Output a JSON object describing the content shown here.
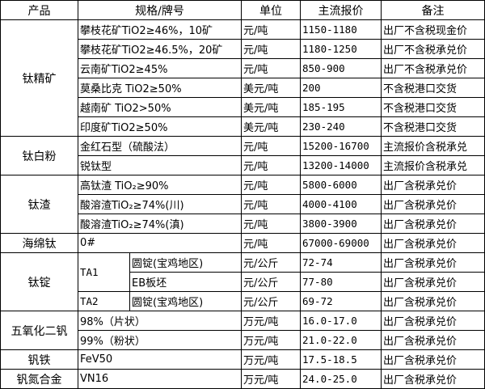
{
  "headers": [
    "产品",
    "规格/牌号",
    "单位",
    "主流报价",
    "备注"
  ],
  "groups": [
    {
      "product": "钛精矿",
      "rows": [
        {
          "spec": "攀枝花矿TiO2≥46%，10矿",
          "unit": "元/吨",
          "price": "1150-1180",
          "note": "出厂不含税现金价"
        },
        {
          "spec": "攀枝花矿TiO2≥46.5%，20矿",
          "unit": "元/吨",
          "price": "1180-1250",
          "note": "出厂不含税承兑价"
        },
        {
          "spec": "云南矿TiO2≥45%",
          "unit": "元/吨",
          "price": "850-900",
          "note": "出厂不含税承兑价"
        },
        {
          "spec": "莫桑比克 TiO2≥50%",
          "unit": "美元/吨",
          "price": "200",
          "note": "不含税港口交货"
        },
        {
          "spec": "越南矿 TiO2>50%",
          "unit": "美元/吨",
          "price": "185-195",
          "note": "不含税港口交货"
        },
        {
          "spec": "印度矿TiO2≥50%",
          "unit": "美元/吨",
          "price": "230-240",
          "note": "不含税港口交货"
        }
      ]
    },
    {
      "product": "钛白粉",
      "rows": [
        {
          "spec": "金红石型（硫酸法）",
          "unit": "元/吨",
          "price": "15200-16700",
          "note": "主流报价含税承兑"
        },
        {
          "spec": "锐钛型",
          "unit": "元/吨",
          "price": "13200-14000",
          "note": "主流报价含税承兑"
        }
      ]
    },
    {
      "product": "钛渣",
      "rows": [
        {
          "spec": "高钛渣 TiO₂≥90%",
          "unit": "元/吨",
          "price": "5800-6000",
          "note": "出厂含税承兑价"
        },
        {
          "spec": "酸溶渣TiO₂≥74%(川)",
          "unit": "元/吨",
          "price": "4000-4100",
          "note": "出厂含税承兑价"
        },
        {
          "spec": "酸溶渣TiO₂≥74%(滇)",
          "unit": "元/吨",
          "price": "3800-3900",
          "note": "出厂含税承兑价"
        }
      ]
    },
    {
      "product": "海绵钛",
      "rows": [
        {
          "spec": "0#",
          "unit": "元/吨",
          "price": "67000-69000",
          "note": "出厂含税承兑价"
        }
      ]
    },
    {
      "product": "钛锭",
      "rows": [
        {
          "grade": "TA1",
          "grade_span": 2,
          "form": "圆锭(宝鸡地区)",
          "unit": "元/公斤",
          "price": "72-74",
          "note": "出厂含税承兑价"
        },
        {
          "form": "EB板坯",
          "unit": "元/公斤",
          "price": "77-80",
          "note": "出厂含税承兑价"
        },
        {
          "grade": "TA2",
          "grade_span": 1,
          "form": "圆锭(宝鸡地区)",
          "unit": "元/公斤",
          "price": "69-72",
          "note": "出厂含税承兑价"
        }
      ]
    },
    {
      "product": "五氧化二钒",
      "rows": [
        {
          "spec": "98%（片状）",
          "unit": "万元/吨",
          "price": "16.0-17.0",
          "note": "出厂含税承兑价"
        },
        {
          "spec": "99%（粉状）",
          "unit": "万元/吨",
          "price": "21.0-22.0",
          "note": "出厂含税承兑价"
        }
      ]
    },
    {
      "product": "钒铁",
      "rows": [
        {
          "spec": "FeV50",
          "unit": "万元/吨",
          "price": "17.5-18.5",
          "note": "出厂含税承兑价"
        }
      ]
    },
    {
      "product": "钒氮合金",
      "rows": [
        {
          "spec": "VN16",
          "unit": "万元/吨",
          "price": "24.0-25.0",
          "note": "出厂含税承兑价"
        }
      ]
    }
  ]
}
